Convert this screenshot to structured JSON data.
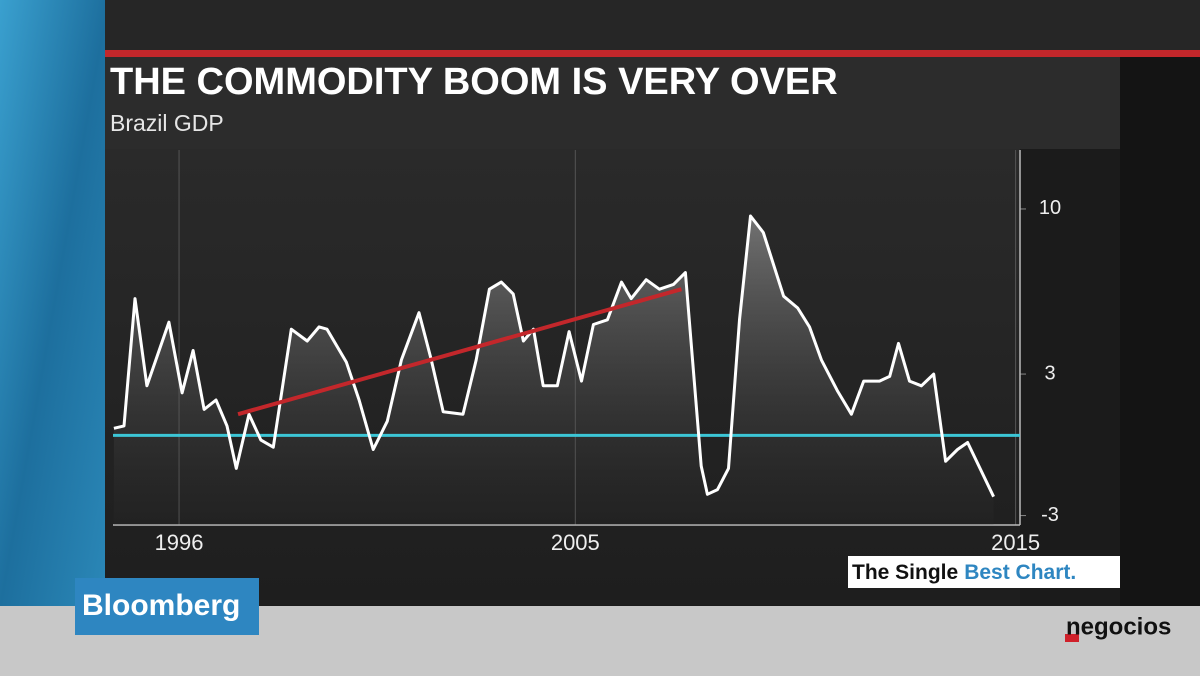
{
  "chart_data": {
    "type": "line",
    "title": "THE COMMODITY BOOM IS VERY OVER",
    "subtitle": "Brazil GDP",
    "x": [
      1994.52,
      1994.75,
      1995.0,
      1995.27,
      1995.77,
      1996.07,
      1996.32,
      1996.57,
      1996.84,
      1997.09,
      1997.3,
      1997.59,
      1997.86,
      1998.14,
      1998.55,
      1998.91,
      1999.18,
      1999.36,
      1999.8,
      2000.09,
      2000.41,
      2000.73,
      2001.05,
      2001.45,
      2001.73,
      2002.0,
      2002.45,
      2002.75,
      2003.05,
      2003.32,
      2003.59,
      2003.82,
      2004.05,
      2004.27,
      2004.59,
      2004.86,
      2005.14,
      2005.41,
      2005.73,
      2006.05,
      2006.27,
      2006.61,
      2006.91,
      2007.23,
      2007.5,
      2007.86,
      2008.0,
      2008.23,
      2008.48,
      2008.73,
      2008.98,
      2009.27,
      2009.73,
      2010.05,
      2010.32,
      2010.59,
      2010.95,
      2011.27,
      2011.55,
      2011.91,
      2012.14,
      2012.34,
      2012.59,
      2012.86,
      2013.14,
      2013.41,
      2013.68,
      2013.91,
      2014.5
    ],
    "values": [
      0.7,
      0.8,
      6.2,
      2.5,
      5.2,
      2.2,
      4.0,
      1.5,
      1.9,
      0.8,
      -1.0,
      1.3,
      0.2,
      -0.1,
      4.9,
      4.4,
      5.0,
      4.9,
      3.5,
      1.9,
      -0.2,
      1.0,
      3.6,
      5.6,
      3.6,
      1.4,
      1.3,
      3.6,
      6.6,
      6.9,
      6.4,
      4.4,
      4.9,
      2.5,
      2.5,
      4.8,
      2.7,
      5.1,
      5.3,
      6.9,
      6.2,
      7.0,
      6.6,
      6.8,
      7.3,
      -0.9,
      -2.1,
      -1.9,
      -1.0,
      5.3,
      9.7,
      9.0,
      6.3,
      5.8,
      5.0,
      3.6,
      2.3,
      1.3,
      2.7,
      2.7,
      2.9,
      4.3,
      2.7,
      2.5,
      3.0,
      -0.7,
      -0.2,
      0.1,
      -2.2
    ],
    "color": "#ffffff",
    "xlim": [
      1994.5,
      2015.1
    ],
    "xticks": [
      1996,
      2005,
      2015
    ],
    "ylim": [
      -3.4,
      12.5
    ],
    "yticks": [
      10,
      3,
      -3
    ],
    "y_axis_side": "right",
    "reference_line": {
      "value": 0.4,
      "color": "#3cc6d6"
    },
    "trend_line": {
      "x": [
        1997.34,
        2007.41
      ],
      "values": [
        1.3,
        6.6
      ],
      "color": "#c3272b"
    }
  },
  "branding": {
    "network": "Bloomberg",
    "segment_prefix": "The Single",
    "segment_highlight": "Best Chart.",
    "source": "negocios"
  }
}
